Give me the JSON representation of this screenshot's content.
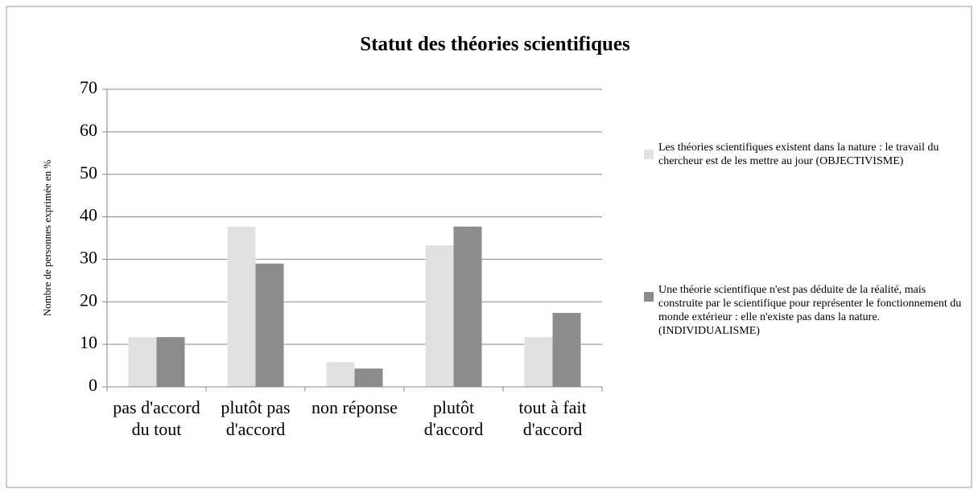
{
  "chart_data": {
    "type": "bar",
    "title": "Statut des théories scientifiques",
    "y_label": "Nombre de  personnes exprimée en %",
    "categories": [
      "pas d'accord du tout",
      "plutôt pas d'accord",
      "non réponse",
      "plutôt d'accord",
      "tout à fait d'accord"
    ],
    "series": [
      {
        "name": "Les théories scientifiques existent dans la nature : le travail du chercheur est de les mettre au jour (OBJECTIVISME)",
        "color": "#e0e0e0",
        "values": [
          11.7,
          37.7,
          5.8,
          33.3,
          11.7
        ]
      },
      {
        "name": "Une théorie scientifique n'est pas déduite de la réalité, mais construite par le scientifique pour représenter le fonctionnement du monde extérieur : elle n'existe pas dans la nature. (INDIVIDUALISME)",
        "color": "#8c8c8c",
        "values": [
          11.7,
          29,
          4.3,
          37.7,
          17.4
        ]
      }
    ],
    "ylim": [
      0,
      70
    ],
    "yticks": [
      0,
      10,
      20,
      30,
      40,
      50,
      60,
      70
    ],
    "grid": true,
    "legend": "right"
  }
}
